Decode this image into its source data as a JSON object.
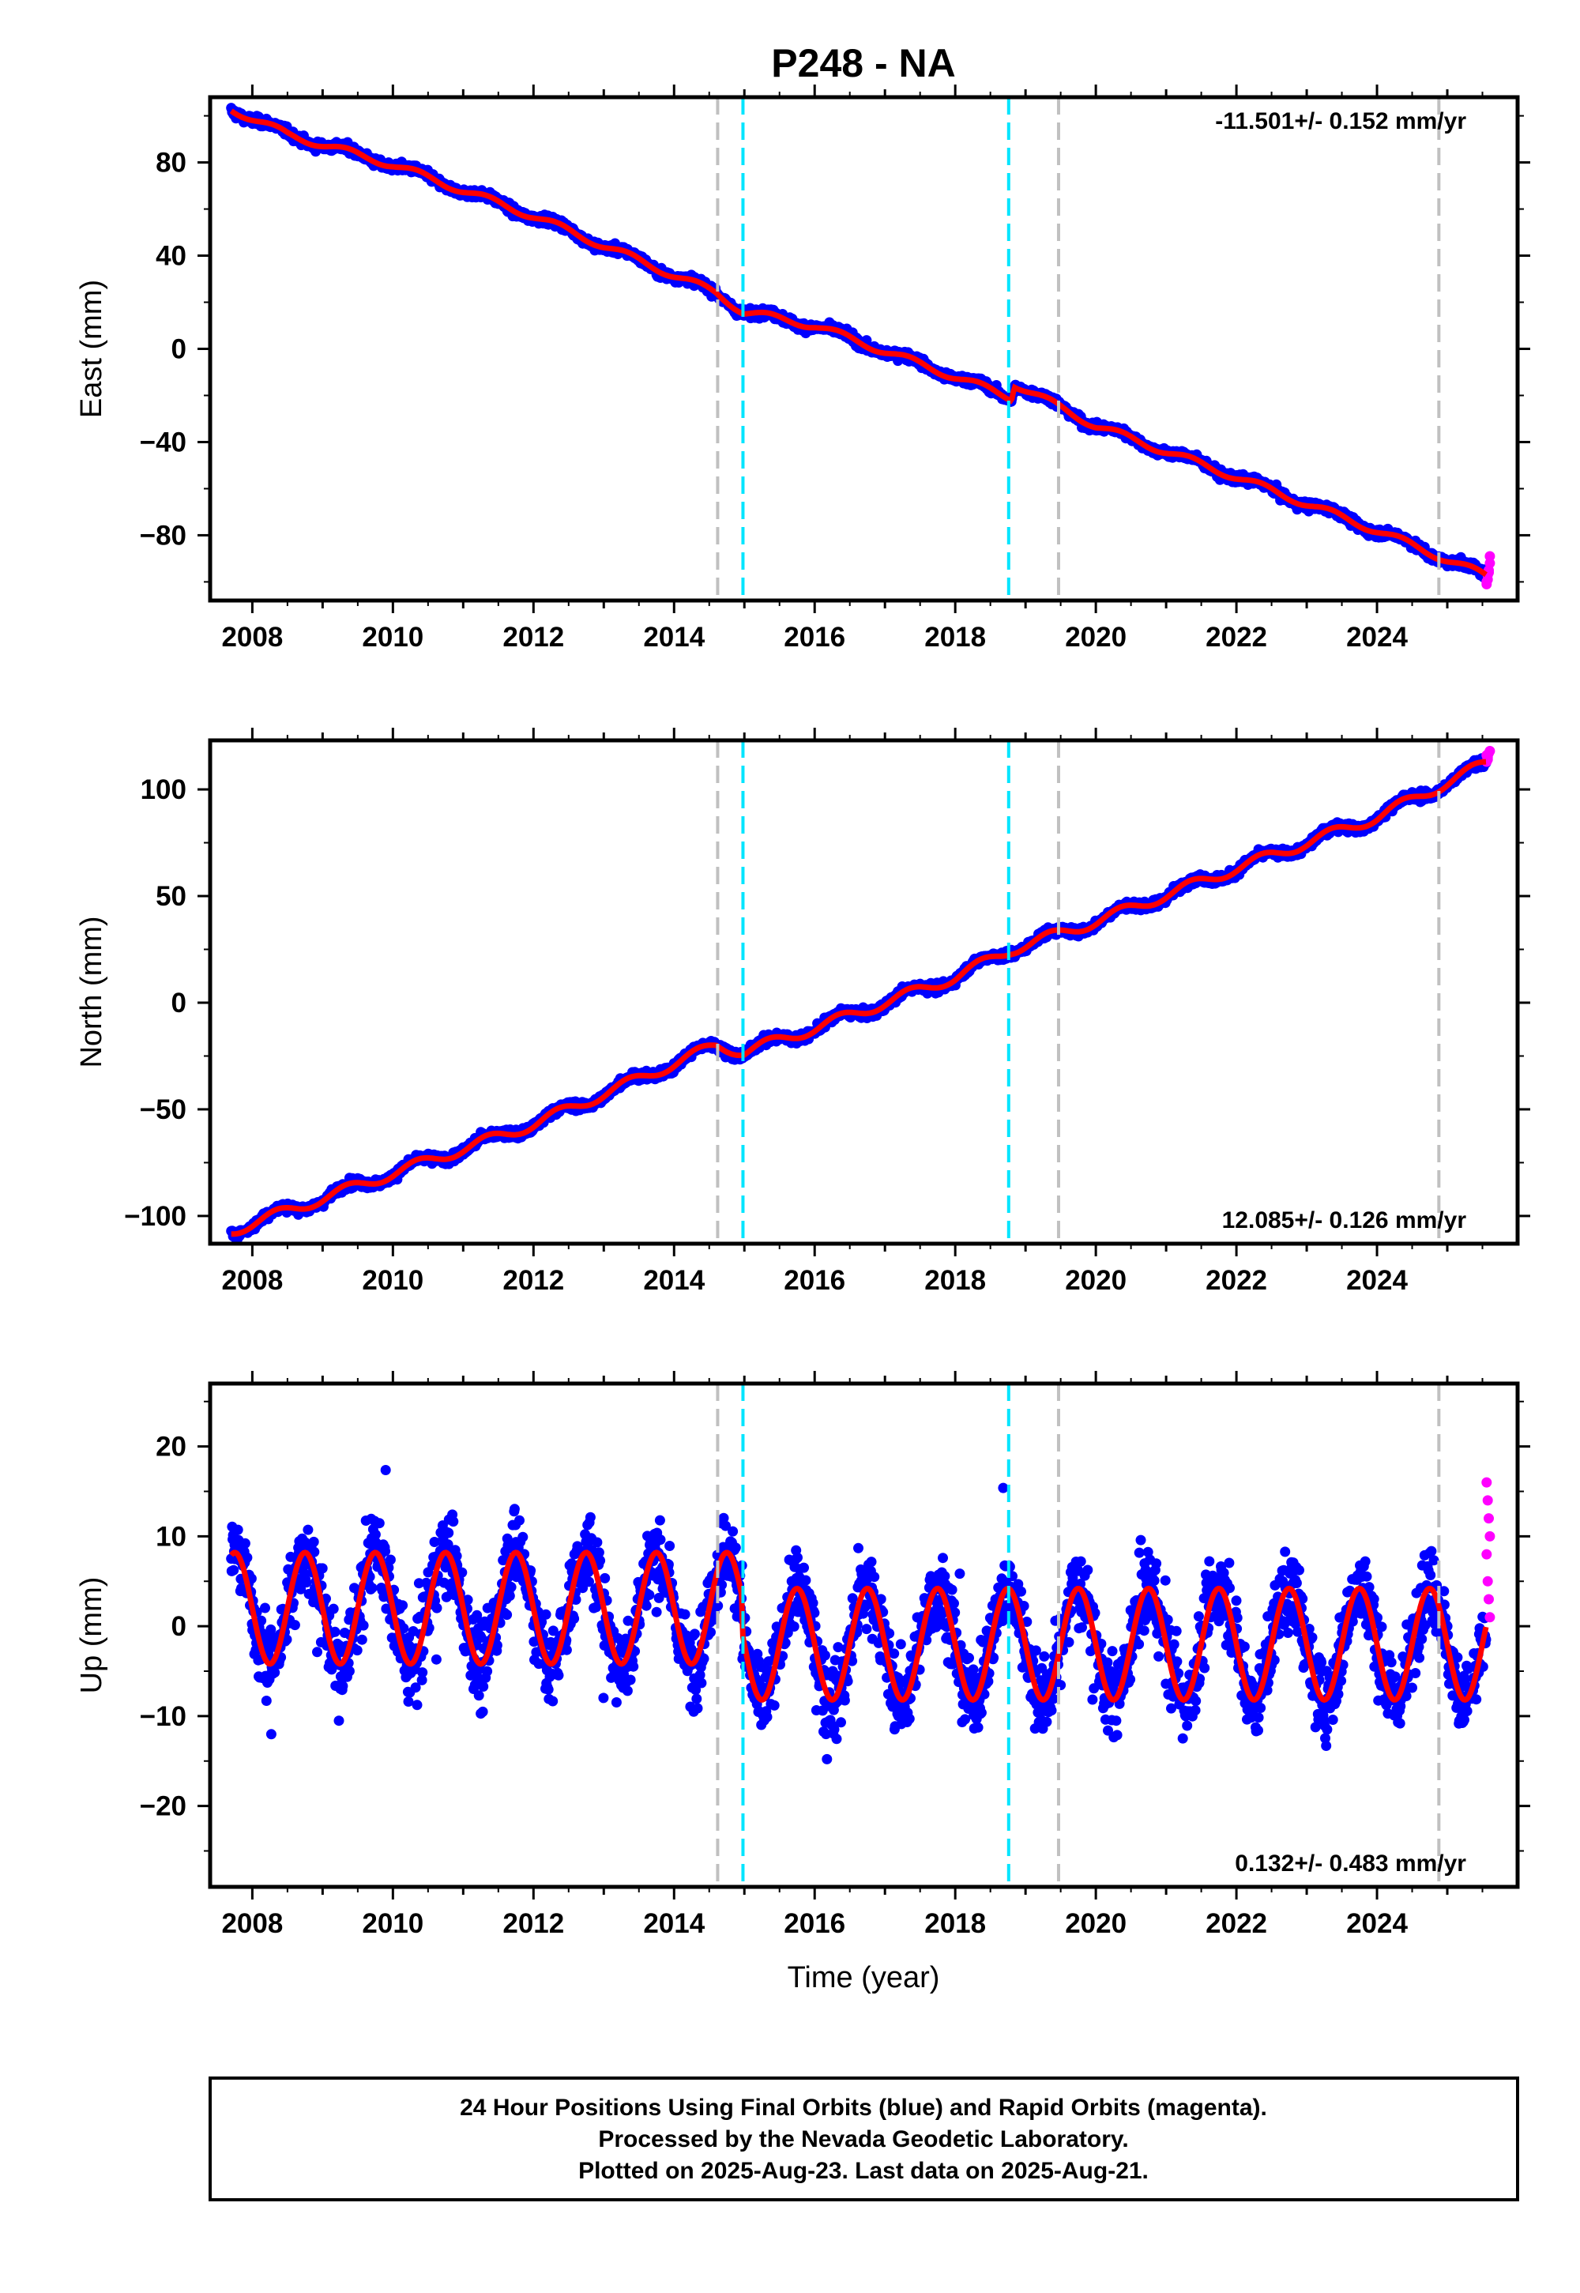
{
  "title": "P248 - NA",
  "footer": {
    "line1": "24 Hour Positions Using Final Orbits (blue) and Rapid Orbits (magenta).",
    "line2": "Processed by the Nevada Geodetic Laboratory.",
    "line3": "Plotted on 2025-Aug-23. Last data on 2025-Aug-21."
  },
  "colors": {
    "final_orbits": "#0000ff",
    "rapid_orbits": "#ff00ff",
    "model": "#ff0000",
    "equipment_change_line": "#c0c0c0",
    "earthquake_line": "#00e5ff"
  },
  "chart_data": [
    {
      "type": "scatter",
      "panel": "east",
      "ylabel": "East (mm)",
      "xlim": [
        2007.4,
        2026.0
      ],
      "ylim": [
        -108,
        108
      ],
      "yticks": [
        -80,
        -40,
        0,
        40,
        80
      ],
      "xticks": [
        2008,
        2010,
        2012,
        2014,
        2016,
        2018,
        2020,
        2022,
        2024
      ],
      "rate_label": "-11.501+/- 0.152 mm/yr",
      "rate_label_position": "top-right",
      "velocity_mm_per_yr": -11.501,
      "offsets": [
        {
          "epoch": 2014.97,
          "value": -2
        },
        {
          "epoch": 2018.83,
          "value": 6
        }
      ],
      "model_points": [
        {
          "x": 2007.7,
          "y": 103
        },
        {
          "x": 2008.5,
          "y": 92
        },
        {
          "x": 2010.0,
          "y": 79
        },
        {
          "x": 2012.0,
          "y": 57
        },
        {
          "x": 2014.6,
          "y": 24
        },
        {
          "x": 2014.98,
          "y": 16
        },
        {
          "x": 2016.0,
          "y": 10
        },
        {
          "x": 2018.0,
          "y": -12
        },
        {
          "x": 2018.8,
          "y": -21
        },
        {
          "x": 2018.84,
          "y": -15
        },
        {
          "x": 2020.0,
          "y": -33
        },
        {
          "x": 2022.0,
          "y": -55
        },
        {
          "x": 2024.0,
          "y": -78
        },
        {
          "x": 2025.6,
          "y": -98
        }
      ],
      "seasonal_amplitude": 1.5,
      "scatter_noise": 1.6,
      "rapid_points": [
        -100,
        -97,
        -95,
        -89,
        -101,
        -99,
        -96,
        -92
      ]
    },
    {
      "type": "scatter",
      "panel": "north",
      "ylabel": "North (mm)",
      "xlim": [
        2007.4,
        2026.0
      ],
      "ylim": [
        -113,
        123
      ],
      "yticks": [
        -100,
        -50,
        0,
        50,
        100
      ],
      "xticks": [
        2008,
        2010,
        2012,
        2014,
        2016,
        2018,
        2020,
        2022,
        2024
      ],
      "rate_label": "12.085+/- 0.126 mm/yr",
      "rate_label_position": "bottom-right",
      "velocity_mm_per_yr": 12.085,
      "model_points": [
        {
          "x": 2007.7,
          "y": -107
        },
        {
          "x": 2010.0,
          "y": -80
        },
        {
          "x": 2012.0,
          "y": -57
        },
        {
          "x": 2014.6,
          "y": -20
        },
        {
          "x": 2015.0,
          "y": -23
        },
        {
          "x": 2016.0,
          "y": -12
        },
        {
          "x": 2018.0,
          "y": 12
        },
        {
          "x": 2018.8,
          "y": 25
        },
        {
          "x": 2020.0,
          "y": 38
        },
        {
          "x": 2022.0,
          "y": 63
        },
        {
          "x": 2024.0,
          "y": 87
        },
        {
          "x": 2025.6,
          "y": 113
        }
      ],
      "seasonal_amplitude": 2.5,
      "scatter_noise": 1.8,
      "rapid_points": [
        113,
        115,
        117,
        118,
        116,
        114
      ]
    },
    {
      "type": "scatter",
      "panel": "up",
      "ylabel": "Up (mm)",
      "xlabel": "Time (year)",
      "xlim": [
        2007.4,
        2026.0
      ],
      "ylim": [
        -29,
        27
      ],
      "yticks": [
        -20,
        -10,
        0,
        10,
        20
      ],
      "xticks": [
        2008,
        2010,
        2012,
        2014,
        2016,
        2018,
        2020,
        2022,
        2024
      ],
      "rate_label": "0.132+/- 0.483 mm/yr",
      "rate_label_position": "bottom-right",
      "velocity_mm_per_yr": 0.132,
      "seasonal_segments": [
        {
          "from": 2007.7,
          "to": 2014.97,
          "mean": 2.0,
          "amplitude": 6.2,
          "peak_phase": 0.75
        },
        {
          "from": 2014.97,
          "to": 2025.65,
          "mean": -2.0,
          "amplitude": 6.2,
          "peak_phase": 0.75
        }
      ],
      "scatter_noise": 3.6,
      "rapid_points": [
        16,
        14,
        12,
        10,
        8,
        5,
        3,
        1
      ]
    }
  ],
  "vertical_lines": [
    {
      "epoch": 2014.62,
      "kind": "equipment_change",
      "style": "dashed",
      "color": "#c0c0c0"
    },
    {
      "epoch": 2014.98,
      "kind": "earthquake",
      "style": "dashed",
      "color": "#00e5ff"
    },
    {
      "epoch": 2018.76,
      "kind": "earthquake",
      "style": "dashed",
      "color": "#00e5ff"
    },
    {
      "epoch": 2019.47,
      "kind": "equipment_change",
      "style": "dashed",
      "color": "#c0c0c0"
    },
    {
      "epoch": 2024.88,
      "kind": "equipment_change",
      "style": "dashed",
      "color": "#c0c0c0"
    }
  ],
  "data_span": {
    "start": 2007.7,
    "end": 2025.55,
    "rapid_start": 2025.56
  }
}
